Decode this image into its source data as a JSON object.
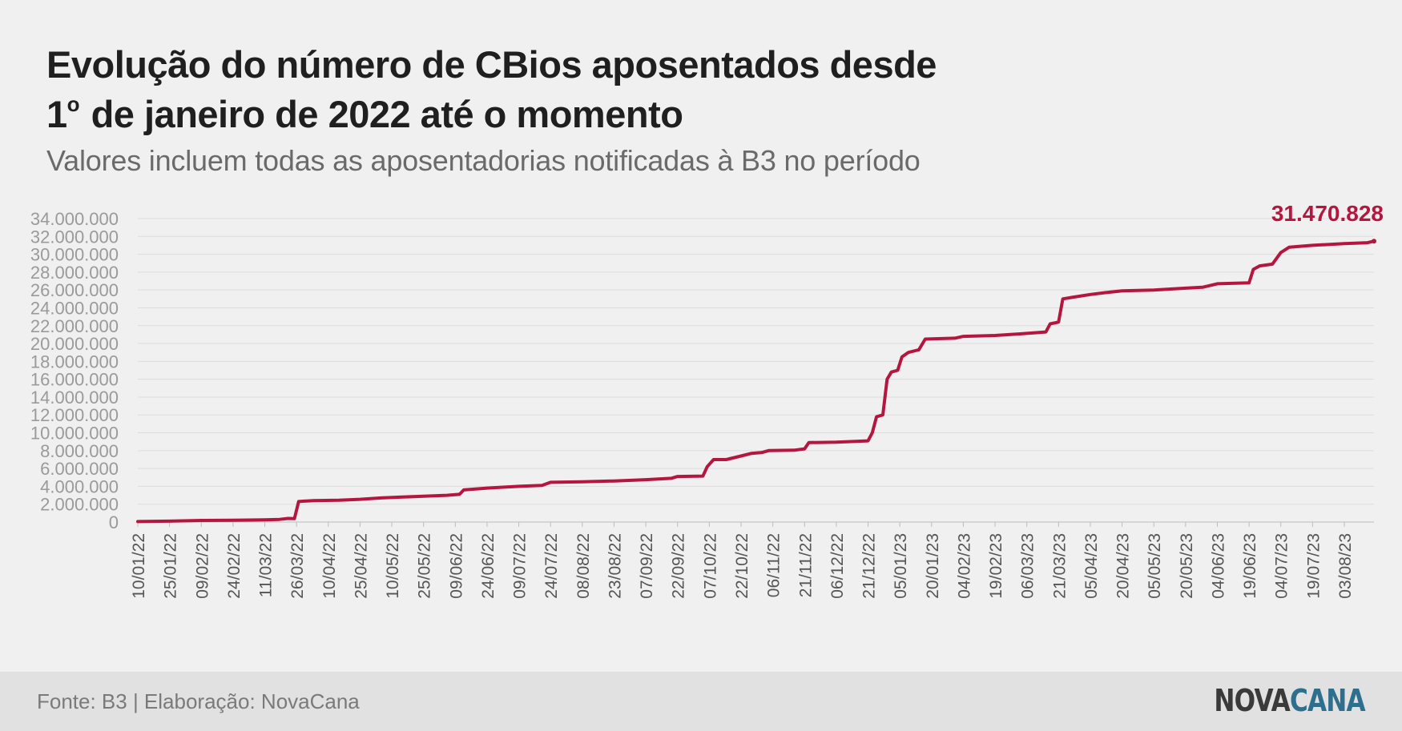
{
  "header": {
    "title_line1": "Evolução do número de CBios aposentados desde",
    "title_line2_num": "1",
    "title_line2_sup": "o",
    "title_line2_rest": " de janeiro de 2022 até o momento",
    "subtitle": "Valores incluem todas as aposentadorias notificadas à B3 no período"
  },
  "footer": {
    "source": "Fonte: B3 | Elaboração: NovaCana",
    "logo_part1": "NOVA",
    "logo_part2": "CANA"
  },
  "colors": {
    "line": "#b5163f",
    "grid": "#dcdcdc",
    "logo_accent": "#2e6f8e"
  },
  "chart_data": {
    "type": "line",
    "title": "Evolução do número de CBios aposentados desde 1º de janeiro de 2022 até o momento",
    "subtitle": "Valores incluem todas as aposentadorias notificadas à B3 no período",
    "x_start": "10/01/22",
    "x_end": "17/08/23",
    "ylim": [
      0,
      34000000
    ],
    "y_ticks": [
      {
        "v": 0,
        "label": "0"
      },
      {
        "v": 2000000,
        "label": "2.000.000"
      },
      {
        "v": 4000000,
        "label": "4.000.000"
      },
      {
        "v": 6000000,
        "label": "6.000.000"
      },
      {
        "v": 8000000,
        "label": "8.000.000"
      },
      {
        "v": 10000000,
        "label": "10.000.000"
      },
      {
        "v": 12000000,
        "label": "12.000.000"
      },
      {
        "v": 14000000,
        "label": "14.000.000"
      },
      {
        "v": 16000000,
        "label": "16.000.000"
      },
      {
        "v": 18000000,
        "label": "18.000.000"
      },
      {
        "v": 20000000,
        "label": "20.000.000"
      },
      {
        "v": 22000000,
        "label": "22.000.000"
      },
      {
        "v": 24000000,
        "label": "24.000.000"
      },
      {
        "v": 26000000,
        "label": "26.000.000"
      },
      {
        "v": 28000000,
        "label": "28.000.000"
      },
      {
        "v": 30000000,
        "label": "30.000.000"
      },
      {
        "v": 32000000,
        "label": "32.000.000"
      },
      {
        "v": 34000000,
        "label": "34.000.000"
      }
    ],
    "x_ticks": [
      "10/01/22",
      "25/01/22",
      "09/02/22",
      "24/02/22",
      "11/03/22",
      "26/03/22",
      "10/04/22",
      "25/04/22",
      "10/05/22",
      "25/05/22",
      "09/06/22",
      "24/06/22",
      "09/07/22",
      "24/07/22",
      "08/08/22",
      "23/08/22",
      "07/09/22",
      "22/09/22",
      "07/10/22",
      "22/10/22",
      "06/11/22",
      "21/11/22",
      "06/12/22",
      "21/12/22",
      "05/01/23",
      "20/01/23",
      "04/02/23",
      "19/02/23",
      "06/03/23",
      "21/03/23",
      "05/04/23",
      "20/04/23",
      "05/05/23",
      "20/05/23",
      "04/06/23",
      "19/06/23",
      "04/07/23",
      "19/07/23",
      "03/08/23"
    ],
    "end_label": "31.470.828",
    "series": [
      {
        "points": [
          [
            "10/01/22",
            50000
          ],
          [
            "25/01/22",
            100000
          ],
          [
            "09/02/22",
            180000
          ],
          [
            "24/02/22",
            200000
          ],
          [
            "11/03/22",
            250000
          ],
          [
            "18/03/22",
            300000
          ],
          [
            "22/03/22",
            400000
          ],
          [
            "25/03/22",
            380000
          ],
          [
            "27/03/22",
            2300000
          ],
          [
            "03/04/22",
            2400000
          ],
          [
            "15/04/22",
            2450000
          ],
          [
            "25/04/22",
            2550000
          ],
          [
            "05/05/22",
            2700000
          ],
          [
            "15/05/22",
            2800000
          ],
          [
            "25/05/22",
            2900000
          ],
          [
            "05/06/22",
            3000000
          ],
          [
            "11/06/22",
            3100000
          ],
          [
            "13/06/22",
            3600000
          ],
          [
            "24/06/22",
            3800000
          ],
          [
            "09/07/22",
            4000000
          ],
          [
            "20/07/22",
            4100000
          ],
          [
            "24/07/22",
            4450000
          ],
          [
            "08/08/22",
            4500000
          ],
          [
            "23/08/22",
            4600000
          ],
          [
            "07/09/22",
            4750000
          ],
          [
            "19/09/22",
            4900000
          ],
          [
            "22/09/22",
            5100000
          ],
          [
            "04/10/22",
            5150000
          ],
          [
            "06/10/22",
            6200000
          ],
          [
            "09/10/22",
            7000000
          ],
          [
            "15/10/22",
            7000000
          ],
          [
            "22/10/22",
            7400000
          ],
          [
            "27/10/22",
            7700000
          ],
          [
            "01/11/22",
            7800000
          ],
          [
            "04/11/22",
            8000000
          ],
          [
            "16/11/22",
            8050000
          ],
          [
            "21/11/22",
            8200000
          ],
          [
            "23/11/22",
            8900000
          ],
          [
            "06/12/22",
            8950000
          ],
          [
            "21/12/22",
            9100000
          ],
          [
            "23/12/22",
            10000000
          ],
          [
            "25/12/22",
            11800000
          ],
          [
            "28/12/22",
            12000000
          ],
          [
            "30/12/22",
            16000000
          ],
          [
            "01/01/23",
            16800000
          ],
          [
            "04/01/23",
            17000000
          ],
          [
            "06/01/23",
            18500000
          ],
          [
            "09/01/23",
            19000000
          ],
          [
            "14/01/23",
            19300000
          ],
          [
            "17/01/23",
            20500000
          ],
          [
            "31/01/23",
            20600000
          ],
          [
            "04/02/23",
            20800000
          ],
          [
            "19/02/23",
            20900000
          ],
          [
            "04/03/23",
            21100000
          ],
          [
            "15/03/23",
            21300000
          ],
          [
            "17/03/23",
            22200000
          ],
          [
            "21/03/23",
            22400000
          ],
          [
            "23/03/23",
            25000000
          ],
          [
            "28/03/23",
            25200000
          ],
          [
            "05/04/23",
            25500000
          ],
          [
            "12/04/23",
            25700000
          ],
          [
            "20/04/23",
            25900000
          ],
          [
            "05/05/23",
            26000000
          ],
          [
            "20/05/23",
            26200000
          ],
          [
            "28/05/23",
            26300000
          ],
          [
            "04/06/23",
            26700000
          ],
          [
            "19/06/23",
            26800000
          ],
          [
            "21/06/23",
            28300000
          ],
          [
            "24/06/23",
            28700000
          ],
          [
            "30/06/23",
            28900000
          ],
          [
            "04/07/23",
            30200000
          ],
          [
            "08/07/23",
            30800000
          ],
          [
            "19/07/23",
            31000000
          ],
          [
            "03/08/23",
            31200000
          ],
          [
            "14/08/23",
            31300000
          ],
          [
            "17/08/23",
            31470828
          ]
        ]
      }
    ]
  }
}
